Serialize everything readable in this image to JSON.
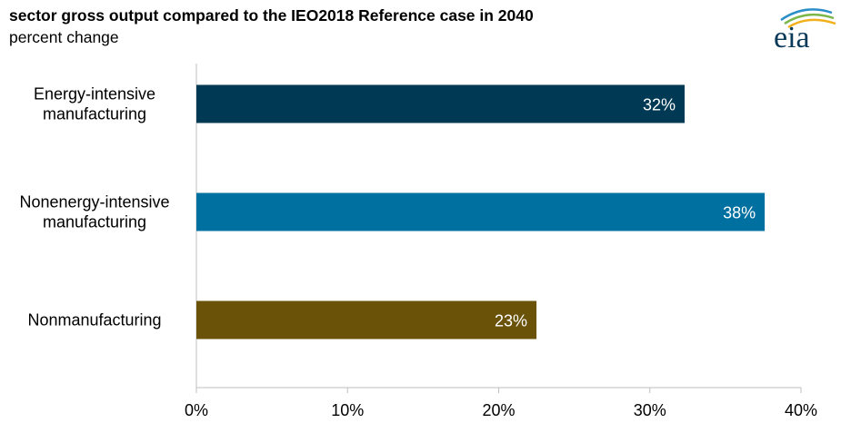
{
  "header": {
    "title": "sector gross output compared to the IEO2018 Reference case in 2040",
    "subtitle": "percent change",
    "logo_text": "eia"
  },
  "chart_data": {
    "type": "bar",
    "orientation": "horizontal",
    "categories": [
      [
        "Energy-intensive",
        "manufacturing"
      ],
      [
        "Nonenergy-intensive",
        "manufacturing"
      ],
      [
        "Nonmanufacturing"
      ]
    ],
    "values": [
      32.3,
      37.6,
      22.5
    ],
    "data_labels": [
      "32%",
      "38%",
      "23%"
    ],
    "colors": [
      "#003953",
      "#0070a0",
      "#6b5209"
    ],
    "xlim": [
      0,
      40
    ],
    "xticks": [
      0,
      10,
      20,
      30,
      40
    ],
    "xtick_labels": [
      "0%",
      "10%",
      "20%",
      "30%",
      "40%"
    ],
    "grid": false
  }
}
